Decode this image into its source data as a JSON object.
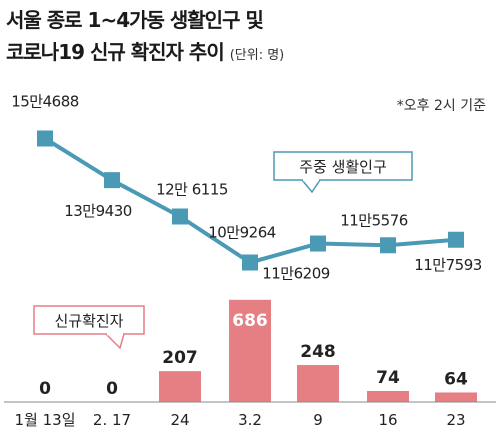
{
  "title_line1": "서울 종로 1~4가동 생활인구 및",
  "title_line2": "코로나19 신규 확진자 추이",
  "unit": "(단위: 명)",
  "note": "*오후 2시 기준",
  "colors": {
    "line": "#4b9ab5",
    "marker": "#4b9ab5",
    "bar": "#e57f83",
    "bar_highlight": "#e57f83"
  },
  "chart_data": [
    {
      "type": "line",
      "title": "",
      "series": [
        {
          "name": "주중 생활인구",
          "values": [
            154688,
            139430,
            126115,
            109264,
            116209,
            115576,
            117593
          ]
        }
      ],
      "categories": [
        "1월 13일",
        "2. 17",
        "24",
        "3.2",
        "9",
        "16",
        "23"
      ],
      "value_labels": [
        "15만4688",
        "13만9430",
        "12만 6115",
        "10만9264",
        "11만6209",
        "11만5576",
        "11만7593"
      ],
      "ylim": [
        100000,
        160000
      ]
    },
    {
      "type": "bar",
      "title": "",
      "series": [
        {
          "name": "신규확진자",
          "values": [
            0,
            0,
            207,
            686,
            248,
            74,
            64
          ]
        }
      ],
      "categories": [
        "1월 13일",
        "2. 17",
        "24",
        "3.2",
        "9",
        "16",
        "23"
      ],
      "value_labels": [
        "0",
        "0",
        "207",
        "686",
        "248",
        "74",
        "64"
      ],
      "ylim": [
        0,
        700
      ]
    }
  ]
}
